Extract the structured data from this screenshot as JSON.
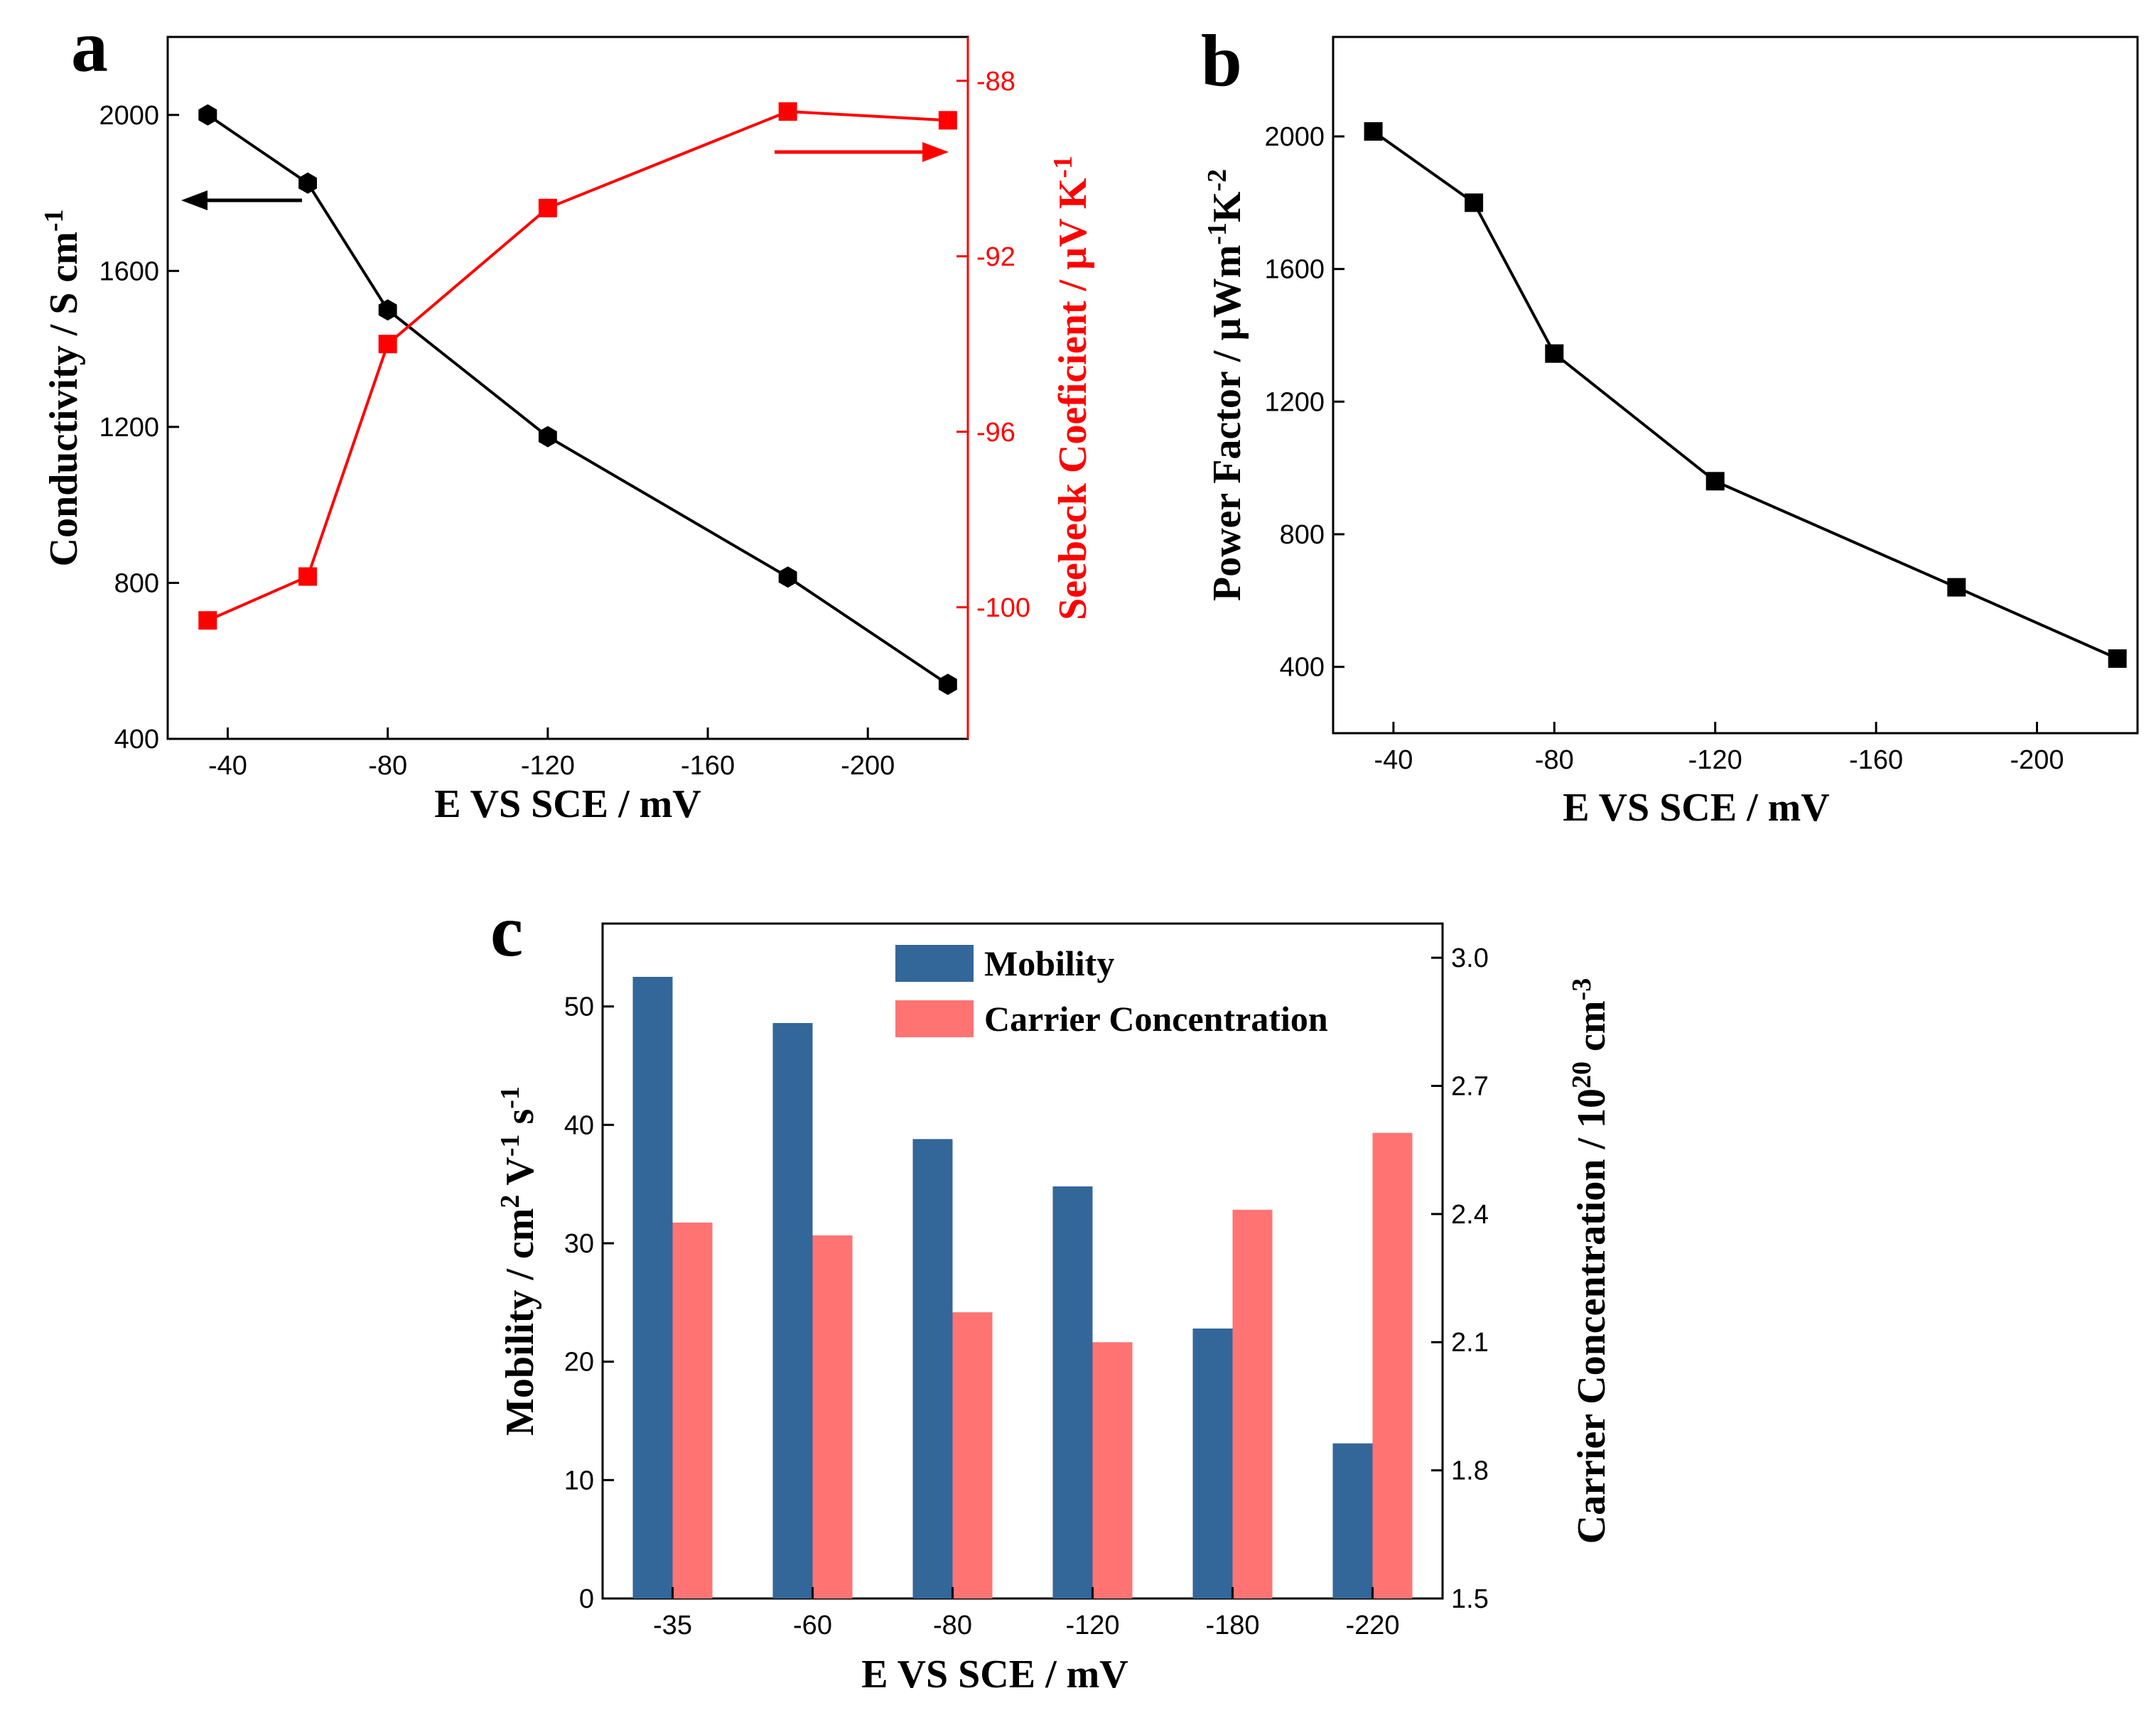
{
  "colors": {
    "black": "#000000",
    "red": "#ff0000",
    "mobility": "#336699",
    "carrier": "#ff7373"
  },
  "chart_data": [
    {
      "panel": "a",
      "type": "line",
      "xlabel": "E VS SCE / mV",
      "xlim": [
        -25,
        -225
      ],
      "xticks": [
        -40,
        -80,
        -120,
        -160,
        -200
      ],
      "x": [
        -35,
        -60,
        -80,
        -120,
        -180,
        -220
      ],
      "ylabel_left": {
        "main": "Conductivity / S cm",
        "sup": "-1"
      },
      "ylim_left": [
        400,
        2200
      ],
      "yticks_left": [
        400,
        800,
        1200,
        1600,
        2000
      ],
      "ylabel_right": {
        "p1": "Seebeck Coeficient / µV K",
        "sup": "-1"
      },
      "ylim_right": [
        -103,
        -87
      ],
      "yticks_right": [
        -100,
        -96,
        -92,
        -88
      ],
      "series": [
        {
          "name": "Conductivity",
          "axis": "left",
          "marker": "hexagon",
          "color": "#000000",
          "values": [
            2000,
            1825,
            1500,
            1175,
            815,
            540
          ]
        },
        {
          "name": "Seebeck Coeficient",
          "axis": "right",
          "marker": "square",
          "color": "#ff0000",
          "values": [
            -100.3,
            -99.3,
            -94.0,
            -90.9,
            -88.7,
            -88.9
          ]
        }
      ],
      "annotations": [
        "left-arrow to conductivity axis",
        "right-arrow to Seebeck axis"
      ]
    },
    {
      "panel": "b",
      "type": "line",
      "xlabel": "E VS SCE / mV",
      "xlim": [
        -25,
        -225
      ],
      "xticks": [
        -40,
        -80,
        -120,
        -160,
        -200
      ],
      "x": [
        -35,
        -60,
        -80,
        -120,
        -180,
        -220
      ],
      "ylabel": {
        "p1": "Power Factor / µWm",
        "s1": "-1",
        "p2": "K",
        "s2": "-2"
      },
      "ylim": [
        200,
        2300
      ],
      "yticks": [
        400,
        800,
        1200,
        1600,
        2000
      ],
      "series": [
        {
          "name": "Power Factor",
          "marker": "square",
          "color": "#000000",
          "values": [
            2015,
            1800,
            1345,
            960,
            640,
            425
          ]
        }
      ]
    },
    {
      "panel": "c",
      "type": "bar",
      "xlabel": "E VS SCE / mV",
      "categories": [
        "-35",
        "-60",
        "-80",
        "-120",
        "-180",
        "-220"
      ],
      "ylabel_left": {
        "p1": "Mobility / cm",
        "s1": "2",
        "p2": " V",
        "s2": "-1",
        "p3": " s",
        "s3": "-1"
      },
      "ylim_left": [
        0,
        57
      ],
      "yticks_left": [
        0,
        10,
        20,
        30,
        40,
        50
      ],
      "ylabel_right": {
        "p1": "Carrier Concentration / 10",
        "s1": "20",
        "p2": " cm",
        "s2": "-3"
      },
      "ylim_right": [
        1.5,
        3.08
      ],
      "yticks_right": [
        "1.5",
        "1.8",
        "2.1",
        "2.4",
        "2.7",
        "3.0"
      ],
      "legend": [
        "Mobility",
        "Carrier Concentration"
      ],
      "legend_position": "top-right",
      "series": [
        {
          "name": "Mobility",
          "axis": "left",
          "color": "#336699",
          "values": [
            52.5,
            48.6,
            38.8,
            34.8,
            22.8,
            13.1
          ]
        },
        {
          "name": "Carrier Concentration",
          "axis": "right",
          "color": "#ff7373",
          "values": [
            2.38,
            2.35,
            2.17,
            2.1,
            2.41,
            2.59
          ]
        }
      ]
    }
  ]
}
